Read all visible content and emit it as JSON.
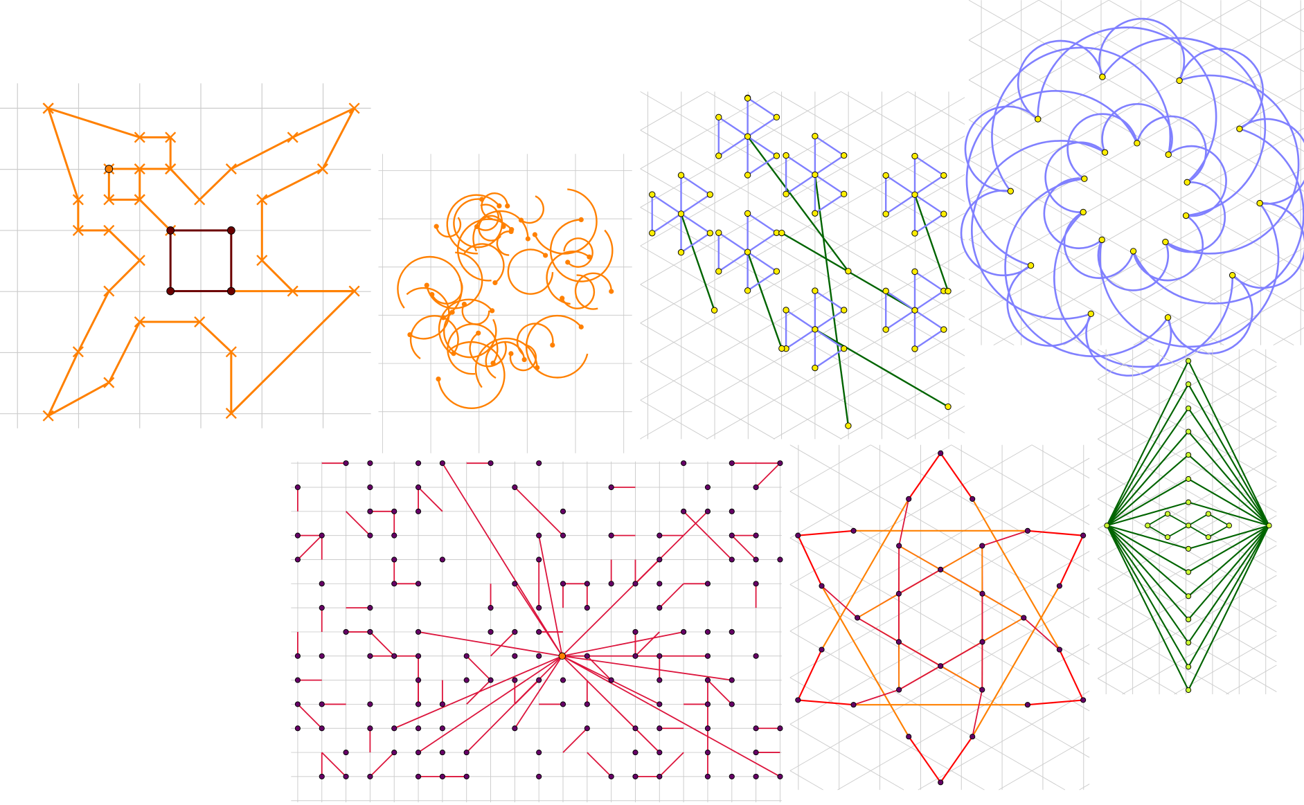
{
  "colors": {
    "grid": "#cccccc",
    "orange": "#ff8000",
    "dark_red": "#6b0000",
    "blue": "#8080ff",
    "green": "#006400",
    "yellow_node": "#ffee00",
    "crimson": "#dc143c",
    "purple_node": "#660066",
    "red": "#ff0000",
    "lime_node": "#ccff33"
  },
  "icons": [
    "cross-marker",
    "circle-node",
    "arrow-head"
  ]
}
